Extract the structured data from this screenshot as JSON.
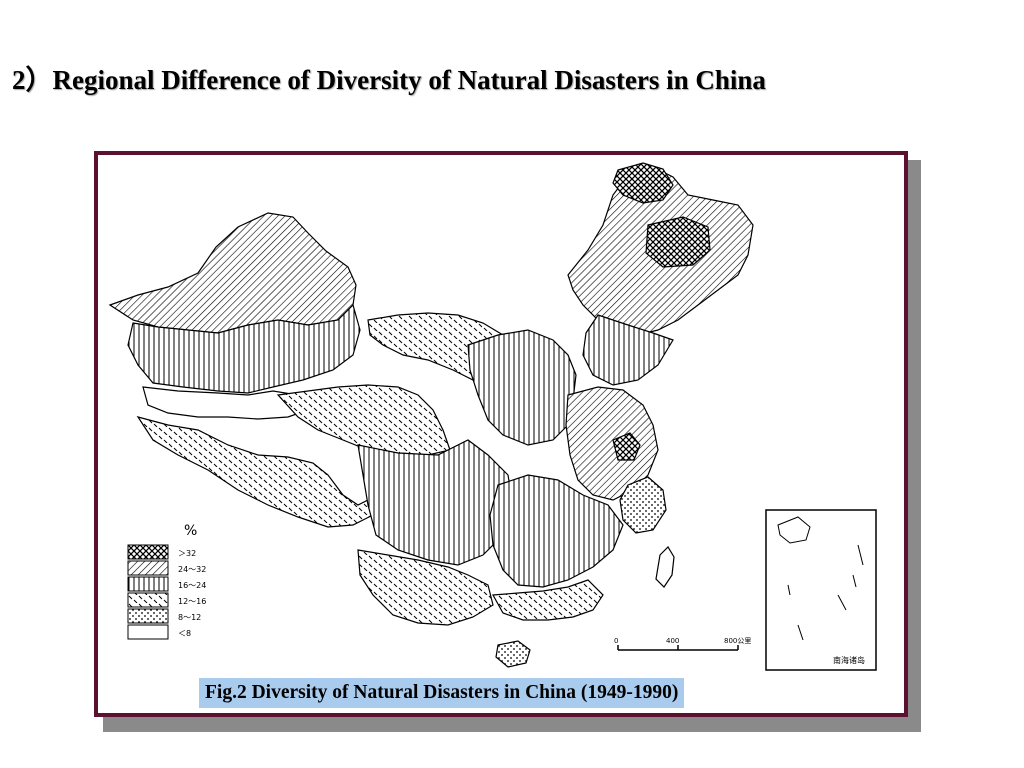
{
  "page": {
    "title": "2）Regional Difference of Diversity of Natural Disasters in China"
  },
  "figure": {
    "caption": "Fig.2  Diversity of Natural Disasters in China (1949-1990)",
    "frame_color": "#5a1230",
    "caption_bg_color": "#a9cbee",
    "legend": {
      "unit": "%",
      "classes": [
        {
          "label": "＞32",
          "pattern": "crosshatch"
        },
        {
          "label": "24～32",
          "pattern": "diagonal-dense"
        },
        {
          "label": "16～24",
          "pattern": "vertical-lines"
        },
        {
          "label": "12～16",
          "pattern": "dashes"
        },
        {
          "label": "8～12",
          "pattern": "dots"
        },
        {
          "label": "＜8",
          "pattern": "blank"
        }
      ]
    },
    "scale_bar": {
      "ticks": [
        "0",
        "400",
        "800公里"
      ]
    },
    "inset": {
      "label": "南海诸岛"
    }
  }
}
